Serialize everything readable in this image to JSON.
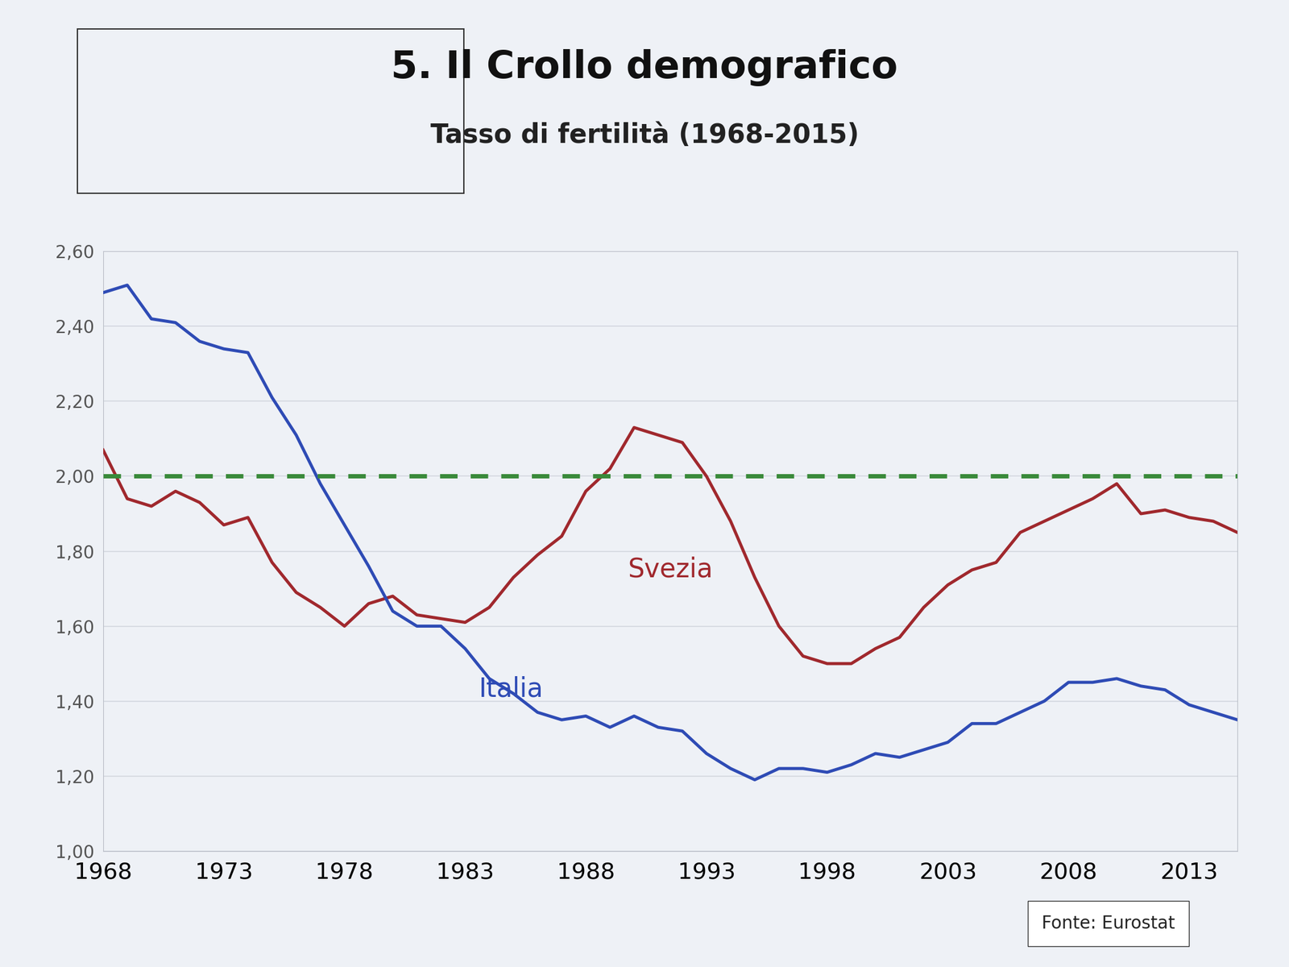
{
  "chart_data": {
    "type": "line",
    "title": "5. Il Crollo demografico",
    "subtitle": "Tasso di fertilità (1968-2015)",
    "source": "Fonte: Eurostat",
    "x": [
      1968,
      1969,
      1970,
      1971,
      1972,
      1973,
      1974,
      1975,
      1976,
      1977,
      1978,
      1979,
      1980,
      1981,
      1982,
      1983,
      1984,
      1985,
      1986,
      1987,
      1988,
      1989,
      1990,
      1991,
      1992,
      1993,
      1994,
      1995,
      1996,
      1997,
      1998,
      1999,
      2000,
      2001,
      2002,
      2003,
      2004,
      2005,
      2006,
      2007,
      2008,
      2009,
      2010,
      2011,
      2012,
      2013,
      2014,
      2015
    ],
    "series": [
      {
        "name": "Svezia",
        "color": "#a0282d",
        "line_style": "solid",
        "values": [
          2.07,
          1.94,
          1.92,
          1.96,
          1.93,
          1.87,
          1.89,
          1.77,
          1.69,
          1.65,
          1.6,
          1.66,
          1.68,
          1.63,
          1.62,
          1.61,
          1.65,
          1.73,
          1.79,
          1.84,
          1.96,
          2.02,
          2.13,
          2.11,
          2.09,
          2.0,
          1.88,
          1.73,
          1.6,
          1.52,
          1.5,
          1.5,
          1.54,
          1.57,
          1.65,
          1.71,
          1.75,
          1.77,
          1.85,
          1.88,
          1.91,
          1.94,
          1.98,
          1.9,
          1.91,
          1.89,
          1.88,
          1.85
        ]
      },
      {
        "name": "Italia",
        "color": "#2e4bb5",
        "line_style": "solid",
        "values": [
          2.49,
          2.51,
          2.42,
          2.41,
          2.36,
          2.34,
          2.33,
          2.21,
          2.11,
          1.98,
          1.87,
          1.76,
          1.64,
          1.6,
          1.6,
          1.54,
          1.46,
          1.42,
          1.37,
          1.35,
          1.36,
          1.33,
          1.36,
          1.33,
          1.32,
          1.26,
          1.22,
          1.19,
          1.22,
          1.22,
          1.21,
          1.23,
          1.26,
          1.25,
          1.27,
          1.29,
          1.34,
          1.34,
          1.37,
          1.4,
          1.45,
          1.45,
          1.46,
          1.44,
          1.43,
          1.39,
          1.37,
          1.35
        ]
      },
      {
        "color": "#3a8a3a",
        "line_style": "dashed",
        "values": [
          2.0,
          2.0,
          2.0,
          2.0,
          2.0,
          2.0,
          2.0,
          2.0,
          2.0,
          2.0,
          2.0,
          2.0,
          2.0,
          2.0,
          2.0,
          2.0,
          2.0,
          2.0,
          2.0,
          2.0,
          2.0,
          2.0,
          2.0,
          2.0,
          2.0,
          2.0,
          2.0,
          2.0,
          2.0,
          2.0,
          2.0,
          2.0,
          2.0,
          2.0,
          2.0,
          2.0,
          2.0,
          2.0,
          2.0,
          2.0,
          2.0,
          2.0,
          2.0,
          2.0,
          2.0,
          2.0,
          2.0,
          2.0
        ]
      }
    ],
    "xlim": [
      1968,
      2015
    ],
    "xticks": [
      1968,
      1973,
      1978,
      1983,
      1988,
      1993,
      1998,
      2003,
      2008,
      2013
    ],
    "ylim": [
      1.0,
      2.6
    ],
    "yticks": [
      {
        "value": 1.0,
        "label": "1,00"
      },
      {
        "value": 1.2,
        "label": "1,20"
      },
      {
        "value": 1.4,
        "label": "1,40"
      },
      {
        "value": 1.6,
        "label": "1,60"
      },
      {
        "value": 1.8,
        "label": "1,80"
      },
      {
        "value": 2.0,
        "label": "2,00"
      },
      {
        "value": 2.2,
        "label": "2,20"
      },
      {
        "value": 2.4,
        "label": "2,40"
      },
      {
        "value": 2.6,
        "label": "2,60"
      }
    ],
    "grid": true
  }
}
